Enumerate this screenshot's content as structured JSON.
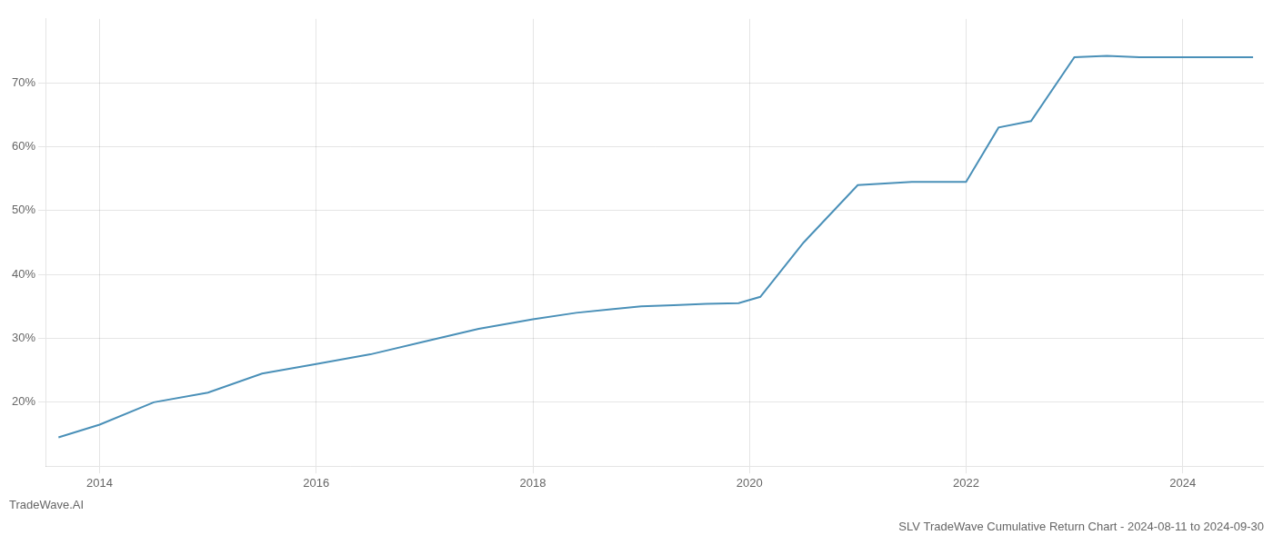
{
  "chart_data": {
    "type": "line",
    "title": "SLV TradeWave Cumulative Return Chart - 2024-08-11 to 2024-09-30",
    "annotations": [
      "TradeWave.AI"
    ],
    "x": [
      2013.62,
      2014.0,
      2014.5,
      2015.0,
      2015.5,
      2016.0,
      2016.5,
      2017.0,
      2017.5,
      2018.0,
      2018.4,
      2018.7,
      2019.0,
      2019.3,
      2019.6,
      2019.9,
      2020.1,
      2020.5,
      2021.0,
      2021.5,
      2022.0,
      2022.3,
      2022.6,
      2023.0,
      2023.3,
      2023.6,
      2024.0,
      2024.4,
      2024.65
    ],
    "values": [
      14.5,
      16.5,
      20.0,
      21.5,
      24.5,
      26.0,
      27.5,
      29.5,
      31.5,
      33.0,
      34.0,
      34.5,
      35.0,
      35.2,
      35.4,
      35.5,
      36.5,
      45.0,
      54.0,
      54.5,
      54.5,
      63.0,
      64.0,
      74.0,
      74.2,
      74.0,
      74.0,
      74.0,
      74.0
    ],
    "color": "#4a90b8",
    "xlim": [
      2013.5,
      2024.75
    ],
    "xticks": [
      2014,
      2016,
      2018,
      2020,
      2022,
      2024
    ],
    "ylim": [
      10,
      80
    ],
    "yticks": [
      {
        "value": 20,
        "label": "20%"
      },
      {
        "value": 30,
        "label": "30%"
      },
      {
        "value": 40,
        "label": "40%"
      },
      {
        "value": 50,
        "label": "50%"
      },
      {
        "value": 60,
        "label": "60%"
      },
      {
        "value": 70,
        "label": "70%"
      }
    ],
    "grid": true
  }
}
